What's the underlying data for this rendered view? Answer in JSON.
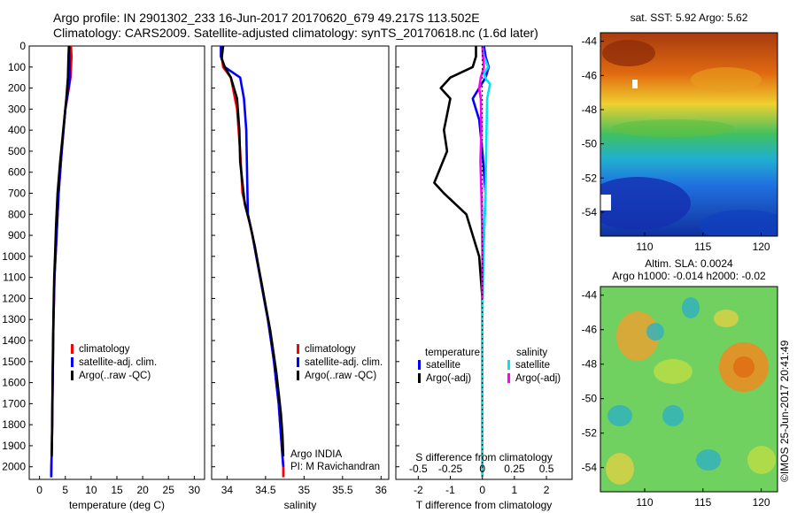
{
  "header": {
    "title_line1": "Argo profile: IN 2901302_233 16-Jun-2017 20170620_679 49.217S 113.502E",
    "title_line2": "Climatology: CARS2009. Satellite-adjusted climatology: synTS_20170618.nc (1.6d later)"
  },
  "colors": {
    "climatology": "#ff0000",
    "satellite": "#0000ff",
    "argo": "#000000",
    "satellite_salinity": "#00e5ee",
    "argo_salinity": "#ff00ff"
  },
  "chart_data": [
    {
      "type": "line",
      "id": "temperature",
      "xlabel": "temperature (deg C)",
      "xlim": [
        -2,
        32
      ],
      "xticks": [
        0,
        5,
        10,
        15,
        20,
        25,
        30
      ],
      "ylim": [
        2060,
        0
      ],
      "yticks": [
        0,
        100,
        200,
        300,
        400,
        500,
        600,
        700,
        800,
        900,
        1000,
        1100,
        1200,
        1300,
        1400,
        1500,
        1600,
        1700,
        1800,
        1900,
        2000
      ],
      "legend": [
        "climatology",
        "satellite-adj. clim.",
        "Argo(..raw -QC)"
      ],
      "series": [
        {
          "name": "climatology",
          "color": "#ff0000",
          "x": [
            6.1,
            6.2,
            6.0,
            5.7,
            5.0,
            4.3,
            3.7,
            3.3,
            3.1,
            2.9,
            2.8,
            2.7,
            2.65,
            2.6,
            2.55,
            2.5,
            2.45,
            2.4,
            2.35,
            2.3,
            2.25
          ],
          "y": [
            0,
            50,
            150,
            200,
            300,
            500,
            700,
            900,
            1000,
            1100,
            1200,
            1300,
            1400,
            1500,
            1600,
            1700,
            1800,
            1900,
            1950,
            2000,
            2050
          ]
        },
        {
          "name": "satellite-adj. clim.",
          "color": "#0000ff",
          "x": [
            5.8,
            5.8,
            5.9,
            5.6,
            5.0,
            4.3,
            3.7,
            3.3,
            3.1,
            2.9,
            2.8,
            2.7,
            2.65,
            2.6,
            2.55,
            2.5,
            2.45,
            2.4,
            2.35,
            2.3,
            2.25
          ],
          "y": [
            0,
            50,
            150,
            200,
            300,
            500,
            700,
            900,
            1000,
            1100,
            1200,
            1300,
            1400,
            1500,
            1600,
            1700,
            1800,
            1900,
            1950,
            2000,
            2050
          ]
        },
        {
          "name": "Argo(..raw -QC)",
          "color": "#000000",
          "x": [
            5.7,
            5.6,
            5.5,
            5.2,
            4.6,
            4.0,
            3.5,
            3.2,
            3.0,
            2.85,
            2.75,
            2.68,
            2.62,
            2.57,
            2.52,
            2.48,
            2.44,
            2.4,
            2.36
          ],
          "y": [
            0,
            50,
            150,
            250,
            400,
            550,
            700,
            850,
            1000,
            1100,
            1200,
            1300,
            1400,
            1500,
            1600,
            1700,
            1800,
            1900,
            1950
          ]
        }
      ]
    },
    {
      "type": "line",
      "id": "salinity",
      "xlabel": "salinity",
      "xlim": [
        33.8,
        36.1
      ],
      "xticks": [
        34,
        34.5,
        35,
        35.5,
        36
      ],
      "ylim": [
        2060,
        0
      ],
      "legend": [
        "climatology",
        "satellite-adj. clim.",
        "Argo(..raw -QC)"
      ],
      "annotation": [
        "Argo INDIA",
        "PI: M Ravichandran"
      ],
      "series": [
        {
          "name": "climatology",
          "color": "#ff0000",
          "x": [
            33.92,
            33.93,
            33.95,
            34.05,
            34.13,
            34.17,
            34.2,
            34.27,
            34.33,
            34.38,
            34.43,
            34.48,
            34.53,
            34.57,
            34.61,
            34.64,
            34.67,
            34.69,
            34.71,
            34.72,
            34.73,
            34.73
          ],
          "y": [
            0,
            50,
            100,
            150,
            300,
            500,
            700,
            800,
            900,
            1000,
            1100,
            1200,
            1300,
            1400,
            1500,
            1600,
            1700,
            1800,
            1900,
            1950,
            2000,
            2050
          ]
        },
        {
          "name": "satellite-adj. clim.",
          "color": "#0000ff",
          "x": [
            33.92,
            33.92,
            33.97,
            34.17,
            34.22,
            34.25,
            34.26,
            34.27,
            34.33,
            34.38,
            34.43,
            34.48,
            34.53,
            34.57,
            34.61,
            34.64,
            34.67,
            34.69,
            34.71,
            34.72,
            34.73
          ],
          "y": [
            0,
            50,
            100,
            150,
            250,
            400,
            600,
            800,
            900,
            1000,
            1100,
            1200,
            1300,
            1400,
            1500,
            1600,
            1700,
            1800,
            1900,
            1950,
            2000
          ]
        },
        {
          "name": "Argo(..raw -QC)",
          "color": "#000000",
          "x": [
            33.95,
            33.93,
            33.97,
            34.05,
            34.13,
            34.16,
            34.17,
            34.2,
            34.23,
            34.3,
            34.36,
            34.41,
            34.46,
            34.51,
            34.56,
            34.6,
            34.64,
            34.67,
            34.7,
            34.72,
            34.73
          ],
          "y": [
            0,
            60,
            100,
            150,
            250,
            400,
            550,
            650,
            750,
            850,
            950,
            1050,
            1150,
            1250,
            1350,
            1450,
            1550,
            1650,
            1750,
            1850,
            1950
          ]
        }
      ]
    },
    {
      "type": "line",
      "id": "difference",
      "xlabel": "T difference from climatology",
      "xlim": [
        -2.7,
        2.8
      ],
      "xticks": [
        -2,
        -1,
        0,
        1,
        2
      ],
      "top_axis_label": "S difference from climatology",
      "top_ticks": [
        -0.5,
        -0.25,
        0,
        0.25,
        0.5
      ],
      "ylim": [
        2060,
        0
      ],
      "legend_temperature_title": "temperature",
      "legend_salinity_title": "salinity",
      "legend": [
        "satellite",
        "Argo(-adj)",
        "satellite",
        "Argo(-adj)"
      ],
      "series": [
        {
          "name": "satellite",
          "quantity": "temperature",
          "color": "#0000ff",
          "x": [
            0.05,
            0.1,
            0.2,
            0.1,
            -0.1,
            -0.3,
            -0.1,
            0.0,
            0.1,
            0.05,
            0.0,
            0.0,
            0.0,
            0.0,
            0.0,
            0.0,
            0.0
          ],
          "y": [
            0,
            50,
            100,
            150,
            200,
            250,
            350,
            500,
            700,
            900,
            1100,
            1300,
            1500,
            1700,
            1900,
            2000,
            2050
          ]
        },
        {
          "name": "Argo(-adj)",
          "quantity": "temperature",
          "color": "#000000",
          "x": [
            -0.2,
            -0.2,
            -0.3,
            -1.0,
            -1.3,
            -1.0,
            -1.2,
            -1.1,
            -1.5,
            -1.2,
            -0.5,
            -0.1,
            0.0,
            0.0,
            0.0,
            0.0
          ],
          "y": [
            0,
            50,
            100,
            150,
            200,
            250,
            400,
            500,
            650,
            700,
            800,
            1000,
            1200,
            1500,
            1800,
            1950
          ]
        },
        {
          "name": "satellite",
          "quantity": "salinity",
          "color": "#00e5ee",
          "x": [
            0.0,
            0.05,
            0.18,
            0.05,
            0.12,
            0.24,
            0.15,
            0.13,
            0.1,
            0.05,
            0.02,
            0.0,
            0.0,
            0.0,
            0.0
          ],
          "y": [
            0,
            50,
            100,
            130,
            160,
            180,
            250,
            400,
            700,
            900,
            1100,
            1300,
            1600,
            1900,
            2050
          ]
        },
        {
          "name": "Argo(-adj)",
          "quantity": "salinity",
          "color": "#ff00ff",
          "x": [
            0.0,
            0.02,
            0.05,
            -0.05,
            -0.1,
            -0.05,
            -0.03,
            -0.06,
            -0.03,
            -0.01,
            0.0,
            0.0
          ],
          "y": [
            0,
            50,
            100,
            150,
            200,
            250,
            400,
            550,
            700,
            850,
            1000,
            1200
          ]
        }
      ]
    }
  ],
  "maps": [
    {
      "id": "sst",
      "title": "sat. SST: 5.92 Argo: 5.62",
      "xticks": [
        110,
        115,
        120
      ],
      "yticks": [
        -44,
        -46,
        -48,
        -50,
        -52,
        -54
      ]
    },
    {
      "id": "sla",
      "title_line1": "Altim. SLA: 0.0024",
      "title_line2": "Argo h1000: -0.014 h2000: -0.02",
      "xticks": [
        110,
        115,
        120
      ],
      "yticks": [
        -44,
        -46,
        -48,
        -50,
        -52,
        -54
      ],
      "credit": "©IMOS 25-Jun-2017 20:41:49"
    }
  ]
}
